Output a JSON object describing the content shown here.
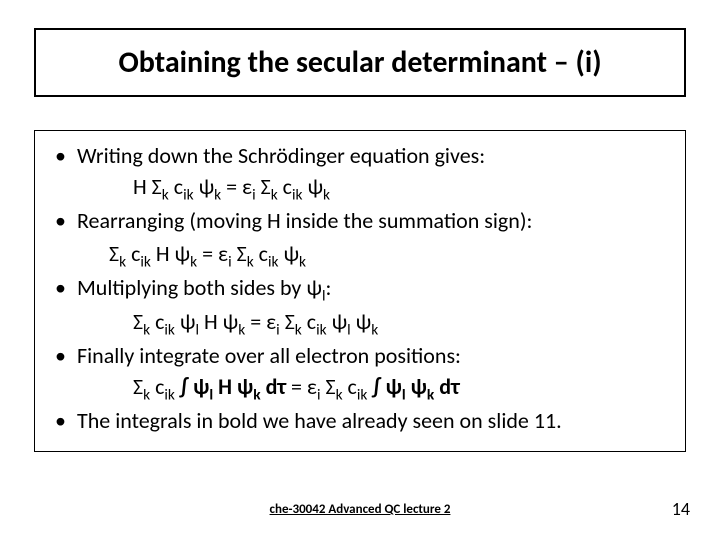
{
  "title": "Obtaining the secular determinant – (i)",
  "bullets": {
    "b1": "Writing down the Schrödinger equation gives:",
    "b2": "Rearranging (moving H inside the summation sign):",
    "b3_pre": "Multiplying both sides by ",
    "b3_post": ":",
    "b4": "Finally integrate over all electron positions:",
    "b5": "The integrals in bold we have already seen on slide 11."
  },
  "footer": "che-30042 Advanced QC lecture 2",
  "page": "14",
  "colors": {
    "text": "#000000",
    "background": "#ffffff",
    "border": "#000000"
  },
  "fontsize": {
    "title": 30,
    "body": 22,
    "footer": 13,
    "page": 18
  }
}
